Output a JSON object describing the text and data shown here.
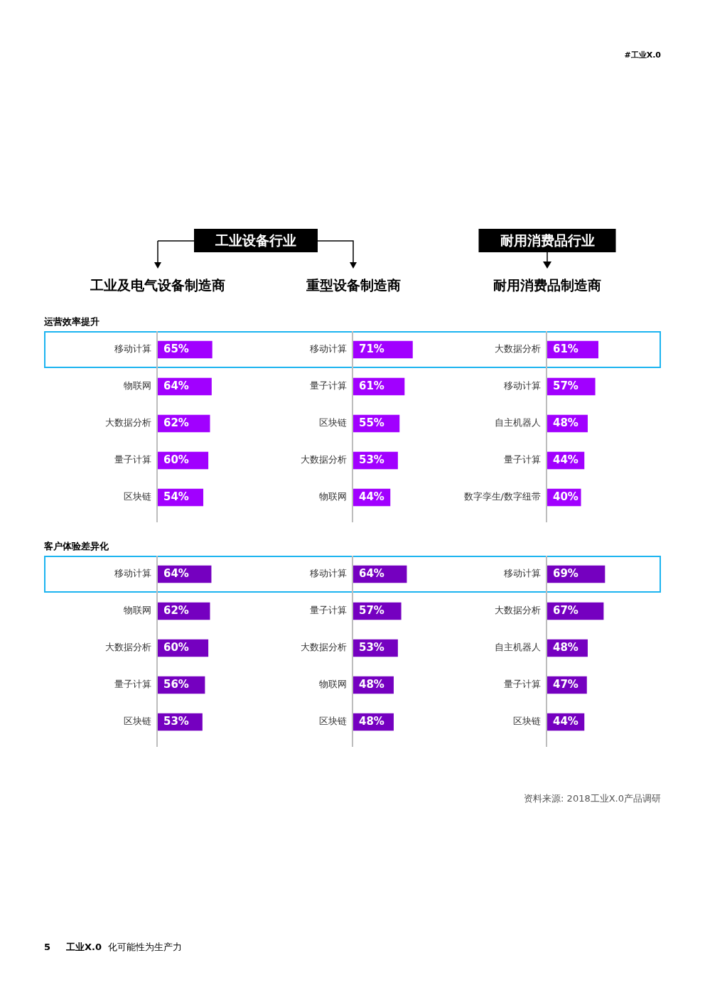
{
  "chart_data": [
    {
      "type": "bar",
      "orientation": "horizontal",
      "title": "工业及电气设备制造商",
      "subtitle": "运营效率提升",
      "annotations": [
        "工业设备行业"
      ],
      "categories": [
        "移动计算",
        "物联网",
        "大数据分析",
        "量子计算",
        "区块链"
      ],
      "values": [
        65,
        64,
        62,
        60,
        54
      ],
      "value_labels": [
        "65%",
        "64%",
        "62%",
        "60%",
        "54%"
      ],
      "color": "#a100ff",
      "tick_labels": "y"
    },
    {
      "type": "bar",
      "orientation": "horizontal",
      "title": "重型设备制造商",
      "categories": [
        "移动计算",
        "量子计算",
        "区块链",
        "大数据分析",
        "物联网"
      ],
      "values": [
        71,
        61,
        55,
        53,
        44
      ],
      "value_labels": [
        "71%",
        "61%",
        "55%",
        "53%",
        "44%"
      ],
      "color": "#a100ff",
      "tick_labels": "y"
    },
    {
      "type": "bar",
      "orientation": "horizontal",
      "title": "耐用消费品制造商",
      "annotations": [
        "耐用消费品行业",
        "#工业X.0"
      ],
      "categories": [
        "大数据分析",
        "移动计算",
        "自主机器人",
        "量子计算",
        "数字孪生/数字纽带"
      ],
      "values": [
        61,
        57,
        48,
        44,
        40
      ],
      "value_labels": [
        "61%",
        "57%",
        "48%",
        "44%",
        "40%"
      ],
      "color": "#a100ff",
      "tick_labels": "y"
    },
    {
      "type": "bar",
      "orientation": "horizontal",
      "subtitle": "客户体验差异化",
      "annotations": [
        "5",
        "工业X.0",
        "化可能性为生产力"
      ],
      "categories": [
        "移动计算",
        "物联网",
        "大数据分析",
        "量子计算",
        "区块链"
      ],
      "values": [
        64,
        62,
        60,
        56,
        53
      ],
      "value_labels": [
        "64%",
        "62%",
        "60%",
        "56%",
        "53%"
      ],
      "color": "#7500c0",
      "tick_labels": "y"
    },
    {
      "type": "bar",
      "orientation": "horizontal",
      "categories": [
        "移动计算",
        "量子计算",
        "大数据分析",
        "物联网",
        "区块链"
      ],
      "values": [
        64,
        57,
        53,
        48,
        48
      ],
      "value_labels": [
        "64%",
        "57%",
        "53%",
        "48%",
        "48%"
      ],
      "color": "#7500c0",
      "tick_labels": "y"
    },
    {
      "type": "bar",
      "orientation": "horizontal",
      "annotations": [
        "资料来源: 2018工业X.0产品调研"
      ],
      "categories": [
        "移动计算",
        "大数据分析",
        "自主机器人",
        "量子计算",
        "区块链"
      ],
      "values": [
        69,
        67,
        48,
        47,
        44
      ],
      "value_labels": [
        "69%",
        "67%",
        "48%",
        "47%",
        "44%"
      ],
      "color": "#7500c0",
      "tick_labels": "y"
    }
  ]
}
